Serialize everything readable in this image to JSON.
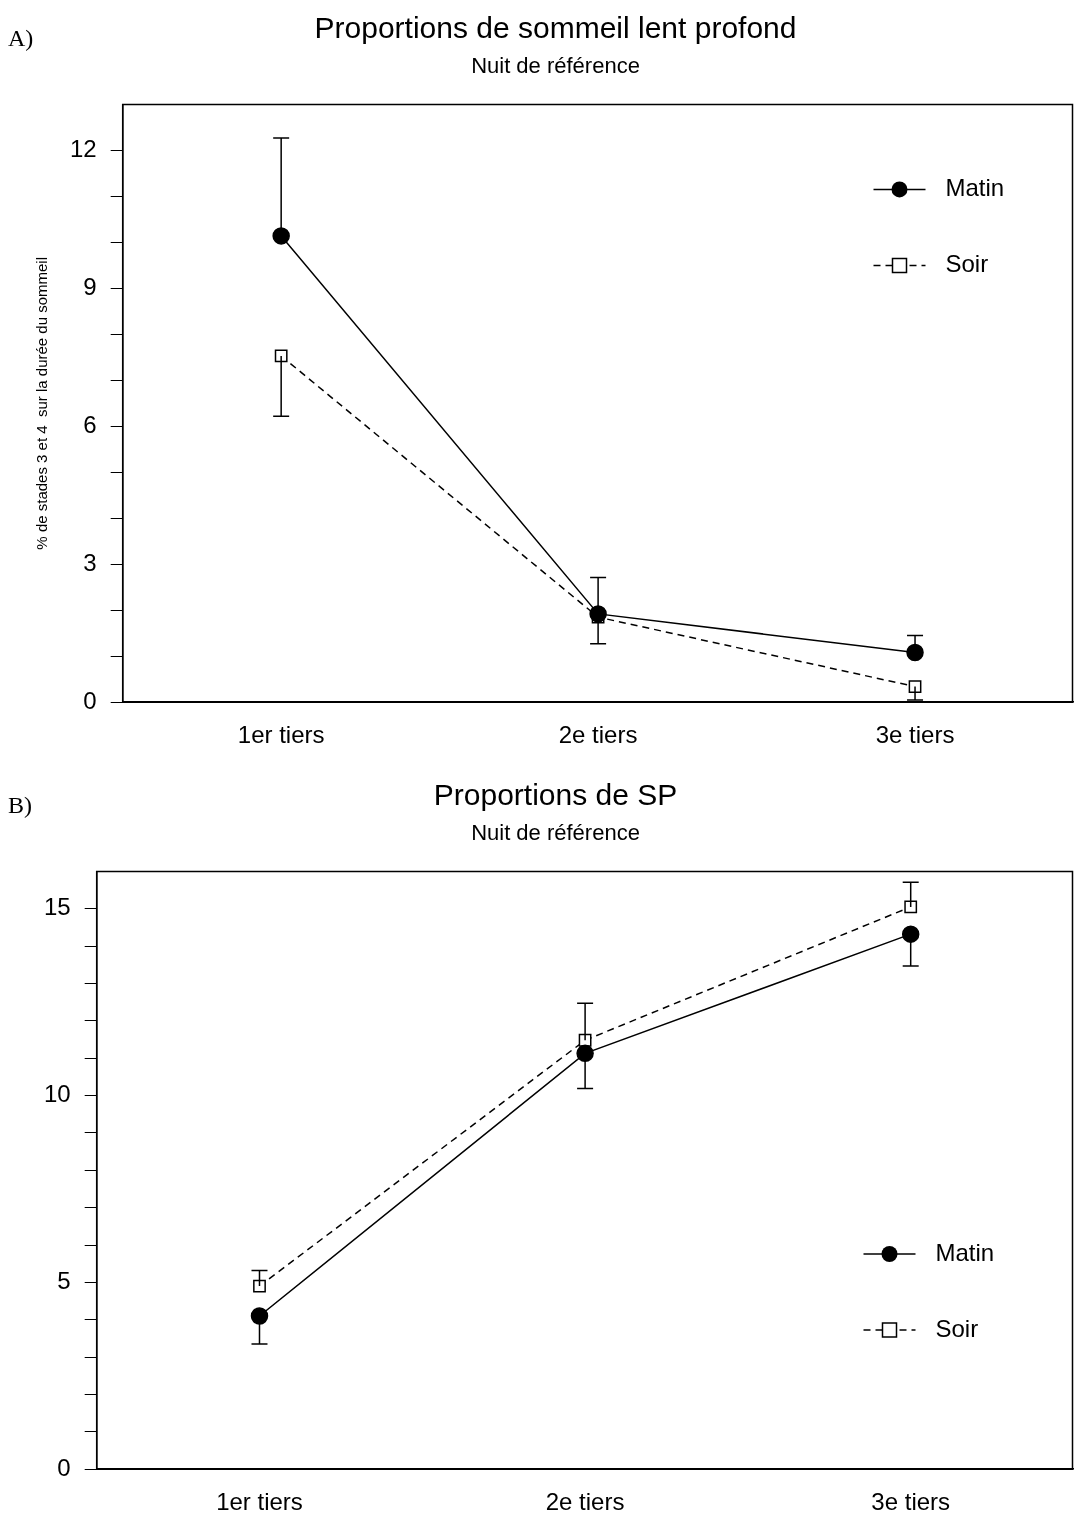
{
  "chart_data": [
    {
      "type": "line",
      "title": "Proportions de sommeil lent profond",
      "subtitle": "Nuit de référence",
      "ylabel": "% de stades 3 et 4  sur la durée du sommeil",
      "annotations": [
        "A)"
      ],
      "categories": [
        "1er tiers",
        "2e tiers",
        "3e tiers"
      ],
      "ylim": [
        0,
        13
      ],
      "yticks": [
        0,
        {
          "value": 1,
          "label": null
        },
        {
          "value": 2,
          "label": null
        },
        3,
        {
          "value": 4,
          "label": null
        },
        {
          "value": 5,
          "label": null
        },
        6,
        {
          "value": 7,
          "label": null
        },
        {
          "value": 8,
          "label": null
        },
        9,
        {
          "value": 10,
          "label": null
        },
        {
          "value": 11,
          "label": null
        },
        12
      ],
      "grid": false,
      "legend": "top right",
      "series": [
        {
          "name": "Matin",
          "color": "#000000",
          "marker": "circle",
          "line_style": "solid",
          "values": [
            10.14,
            1.92,
            1.08
          ],
          "errors": [
            [
              10.14,
              12.27
            ],
            [
              1.92,
              2.71
            ],
            [
              1.08,
              1.45
            ]
          ]
        },
        {
          "name": "Soir",
          "color": "#000000",
          "marker": "square",
          "line_style": "dashed",
          "values": [
            7.53,
            1.85,
            0.34
          ],
          "errors": [
            [
              6.22,
              7.53
            ],
            [
              1.27,
              1.85
            ],
            [
              0.05,
              0.34
            ]
          ]
        }
      ]
    },
    {
      "type": "line",
      "title": "Proportions de SP",
      "subtitle": "Nuit de référence",
      "annotations": [
        "B)"
      ],
      "categories": [
        "1er tiers",
        "2e tiers",
        "3e tiers"
      ],
      "ylim": [
        0,
        16
      ],
      "yticks": [
        0,
        {
          "value": 1,
          "label": null
        },
        {
          "value": 2,
          "label": null
        },
        {
          "value": 3,
          "label": null
        },
        {
          "value": 4,
          "label": null
        },
        5,
        {
          "value": 6,
          "label": null
        },
        {
          "value": 7,
          "label": null
        },
        {
          "value": 8,
          "label": null
        },
        {
          "value": 9,
          "label": null
        },
        10,
        {
          "value": 11,
          "label": null
        },
        {
          "value": 12,
          "label": null
        },
        {
          "value": 13,
          "label": null
        },
        {
          "value": 14,
          "label": null
        },
        15
      ],
      "grid": false,
      "legend": "right",
      "series": [
        {
          "name": "Matin",
          "color": "#000000",
          "marker": "circle",
          "line_style": "solid",
          "values": [
            4.1,
            11.13,
            14.32
          ],
          "errors": [
            [
              3.35,
              4.1
            ],
            [
              10.19,
              11.13
            ],
            [
              13.47,
              14.32
            ]
          ]
        },
        {
          "name": "Soir",
          "color": "#000000",
          "marker": "square",
          "line_style": "dashed",
          "values": [
            4.9,
            11.48,
            15.05
          ],
          "errors": [
            [
              4.9,
              5.32
            ],
            [
              11.48,
              12.47
            ],
            [
              15.05,
              15.71
            ]
          ]
        }
      ]
    }
  ]
}
